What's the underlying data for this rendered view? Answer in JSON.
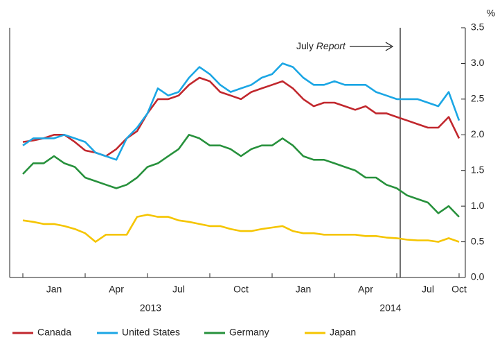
{
  "chart_data": {
    "type": "line",
    "y_unit": "%",
    "categories": [
      null,
      null,
      null,
      "Jan",
      null,
      null,
      null,
      null,
      null,
      "Apr",
      null,
      null,
      null,
      null,
      null,
      "Jul",
      null,
      null,
      null,
      null,
      null,
      "Oct",
      null,
      null,
      null,
      null,
      null,
      "Jan",
      null,
      null,
      null,
      null,
      null,
      "Apr",
      null,
      null,
      null,
      null,
      null,
      "Jul",
      null,
      null,
      "Oct"
    ],
    "year_labels": [
      "2013",
      "2014"
    ],
    "annotation": {
      "text": "July",
      "emphasis": "Report"
    },
    "series": [
      {
        "name": "Canada",
        "color": "#c1272d",
        "values": [
          1.9,
          1.92,
          1.95,
          2.0,
          2.0,
          1.9,
          1.78,
          1.75,
          1.7,
          1.8,
          1.95,
          2.05,
          2.3,
          2.5,
          2.5,
          2.55,
          2.7,
          2.8,
          2.75,
          2.6,
          2.55,
          2.5,
          2.6,
          2.65,
          2.7,
          2.75,
          2.65,
          2.5,
          2.4,
          2.45,
          2.45,
          2.4,
          2.35,
          2.4,
          2.3,
          2.3,
          2.25,
          2.2,
          2.15,
          2.1,
          2.1,
          2.25,
          1.95
        ]
      },
      {
        "name": "United States",
        "color": "#1ba6e4",
        "values": [
          1.85,
          1.95,
          1.95,
          1.95,
          2.0,
          1.95,
          1.9,
          1.75,
          1.7,
          1.65,
          1.95,
          2.1,
          2.3,
          2.65,
          2.55,
          2.6,
          2.8,
          2.95,
          2.85,
          2.7,
          2.6,
          2.65,
          2.7,
          2.8,
          2.85,
          3.0,
          2.95,
          2.8,
          2.7,
          2.7,
          2.75,
          2.7,
          2.7,
          2.7,
          2.6,
          2.55,
          2.5,
          2.5,
          2.5,
          2.45,
          2.4,
          2.6,
          2.2
        ]
      },
      {
        "name": "Germany",
        "color": "#27913c",
        "values": [
          1.45,
          1.6,
          1.6,
          1.7,
          1.6,
          1.55,
          1.4,
          1.35,
          1.3,
          1.25,
          1.3,
          1.4,
          1.55,
          1.6,
          1.7,
          1.8,
          2.0,
          1.95,
          1.85,
          1.85,
          1.8,
          1.7,
          1.8,
          1.85,
          1.85,
          1.95,
          1.85,
          1.7,
          1.65,
          1.65,
          1.6,
          1.55,
          1.5,
          1.4,
          1.4,
          1.3,
          1.25,
          1.15,
          1.1,
          1.05,
          0.9,
          1.0,
          0.85
        ]
      },
      {
        "name": "Japan",
        "color": "#f5c500",
        "values": [
          0.8,
          0.78,
          0.75,
          0.75,
          0.72,
          0.68,
          0.62,
          0.5,
          0.6,
          0.6,
          0.6,
          0.85,
          0.88,
          0.85,
          0.85,
          0.8,
          0.78,
          0.75,
          0.72,
          0.72,
          0.68,
          0.65,
          0.65,
          0.68,
          0.7,
          0.72,
          0.65,
          0.62,
          0.62,
          0.6,
          0.6,
          0.6,
          0.6,
          0.58,
          0.58,
          0.56,
          0.55,
          0.53,
          0.52,
          0.52,
          0.5,
          0.55,
          0.5
        ]
      }
    ],
    "ylim": [
      0,
      3.5
    ],
    "yticks": [
      {
        "value": 0,
        "label": "0.0"
      },
      0.5,
      {
        "value": 1,
        "label": "1.0"
      },
      1.5,
      {
        "value": 2,
        "label": "2.0"
      },
      2.5,
      {
        "value": 3,
        "label": "3.0"
      },
      3.5
    ]
  }
}
